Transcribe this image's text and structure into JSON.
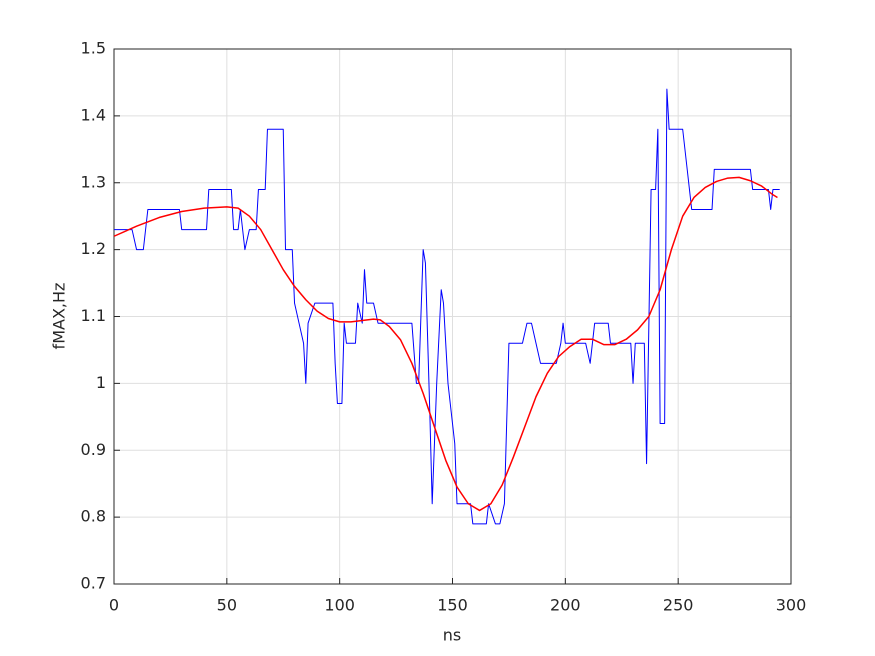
{
  "chart_data": {
    "type": "line",
    "xlabel": "ns",
    "ylabel": "fMAX,Hz",
    "xlim": [
      0,
      300
    ],
    "xticks": [
      0,
      50,
      100,
      150,
      200,
      250,
      300
    ],
    "ylim": [
      0.7,
      1.5
    ],
    "yticks": [
      0.7,
      0.8,
      0.9,
      1,
      1.1,
      1.2,
      1.3,
      1.4,
      1.5
    ],
    "grid": true,
    "series": [
      {
        "color": "#0000ff",
        "x": [
          0,
          8,
          10,
          13,
          15,
          29,
          30,
          41,
          42,
          52,
          53,
          55,
          56,
          58,
          60,
          63,
          64,
          67,
          68,
          75,
          76,
          79,
          80,
          82,
          84,
          85,
          86,
          89,
          97,
          98,
          99,
          101,
          102,
          103,
          107,
          108,
          110,
          111,
          112,
          115,
          117,
          132,
          134,
          135,
          137,
          138,
          140,
          141,
          143,
          145,
          146,
          148,
          151,
          152,
          158,
          159,
          165,
          166,
          169,
          171,
          173,
          174,
          175,
          181,
          183,
          185,
          187,
          189,
          196,
          198,
          199,
          200,
          209,
          211,
          213,
          219,
          220,
          229,
          230,
          231,
          235,
          236,
          238,
          240,
          241,
          242,
          244,
          245,
          246,
          252,
          254,
          255,
          256,
          265,
          266,
          282,
          283,
          290,
          291,
          292,
          295
        ],
        "values": [
          1.23,
          1.23,
          1.2,
          1.2,
          1.26,
          1.26,
          1.23,
          1.23,
          1.29,
          1.29,
          1.23,
          1.23,
          1.26,
          1.2,
          1.23,
          1.23,
          1.29,
          1.29,
          1.38,
          1.38,
          1.2,
          1.2,
          1.12,
          1.09,
          1.06,
          1.0,
          1.09,
          1.12,
          1.12,
          1.03,
          0.97,
          0.97,
          1.09,
          1.06,
          1.06,
          1.12,
          1.09,
          1.17,
          1.12,
          1.12,
          1.09,
          1.09,
          1.0,
          1.0,
          1.2,
          1.18,
          0.95,
          0.82,
          1.0,
          1.14,
          1.12,
          1.0,
          0.91,
          0.82,
          0.82,
          0.79,
          0.79,
          0.82,
          0.79,
          0.79,
          0.82,
          0.94,
          1.06,
          1.06,
          1.09,
          1.09,
          1.06,
          1.03,
          1.03,
          1.06,
          1.09,
          1.06,
          1.06,
          1.03,
          1.09,
          1.09,
          1.06,
          1.06,
          1.0,
          1.06,
          1.06,
          0.88,
          1.29,
          1.29,
          1.38,
          0.94,
          0.94,
          1.44,
          1.38,
          1.38,
          1.32,
          1.29,
          1.26,
          1.26,
          1.32,
          1.32,
          1.29,
          1.29,
          1.26,
          1.29,
          1.29
        ]
      },
      {
        "color": "#ff0000",
        "x": [
          0,
          10,
          20,
          30,
          40,
          50,
          55,
          60,
          65,
          70,
          75,
          80,
          85,
          90,
          95,
          100,
          105,
          110,
          115,
          118,
          122,
          127,
          132,
          137,
          142,
          147,
          152,
          157,
          162,
          167,
          172,
          177,
          182,
          187,
          192,
          197,
          202,
          207,
          212,
          217,
          222,
          227,
          232,
          237,
          242,
          247,
          252,
          257,
          262,
          267,
          272,
          277,
          282,
          287,
          292,
          294
        ],
        "values": [
          1.22,
          1.235,
          1.248,
          1.257,
          1.262,
          1.264,
          1.262,
          1.25,
          1.23,
          1.2,
          1.17,
          1.145,
          1.125,
          1.108,
          1.097,
          1.092,
          1.092,
          1.094,
          1.096,
          1.095,
          1.085,
          1.065,
          1.03,
          0.985,
          0.935,
          0.885,
          0.845,
          0.82,
          0.81,
          0.82,
          0.848,
          0.89,
          0.935,
          0.98,
          1.015,
          1.04,
          1.055,
          1.066,
          1.066,
          1.058,
          1.058,
          1.066,
          1.08,
          1.1,
          1.14,
          1.2,
          1.25,
          1.278,
          1.293,
          1.302,
          1.307,
          1.308,
          1.303,
          1.295,
          1.282,
          1.278
        ]
      }
    ]
  }
}
